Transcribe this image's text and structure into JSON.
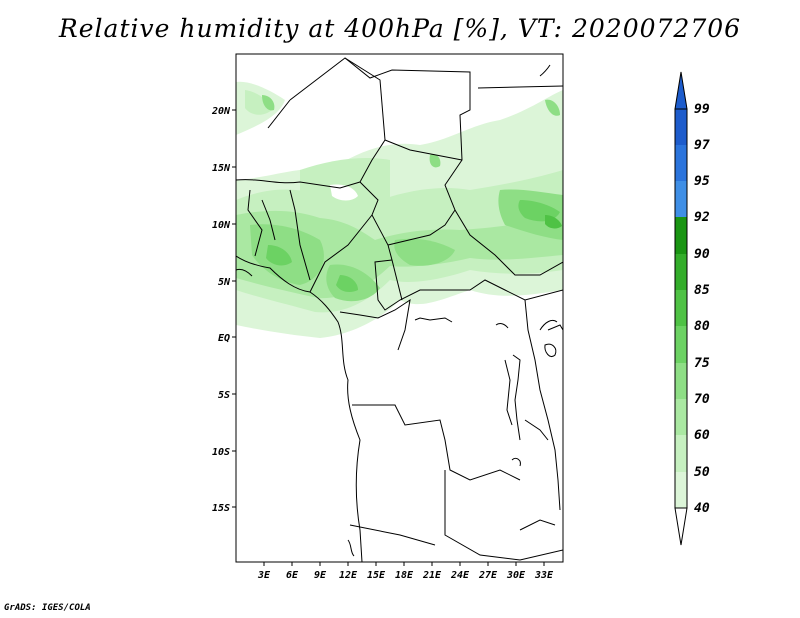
{
  "title": "Relative humidity at 400hPa [%], VT: 2020072706",
  "credit": "GrADS: IGES/COLA",
  "map": {
    "lon_ticks": [
      "3E",
      "6E",
      "9E",
      "12E",
      "15E",
      "18E",
      "21E",
      "24E",
      "27E",
      "30E",
      "33E"
    ],
    "lat_ticks": [
      "20N",
      "15N",
      "10N",
      "5N",
      "EQ",
      "5S",
      "10S",
      "15S"
    ]
  },
  "colorbar": {
    "levels": [
      "40",
      "50",
      "60",
      "70",
      "75",
      "80",
      "85",
      "90",
      "92",
      "95",
      "97",
      "99"
    ],
    "colors": [
      "#f0fbef",
      "#dcf5d8",
      "#c6f0c0",
      "#aae8a2",
      "#8ede85",
      "#6cd263",
      "#4fc245",
      "#33ad2a",
      "#1a9513",
      "#3f8fe6",
      "#2b74dc",
      "#1d5ccc"
    ]
  }
}
